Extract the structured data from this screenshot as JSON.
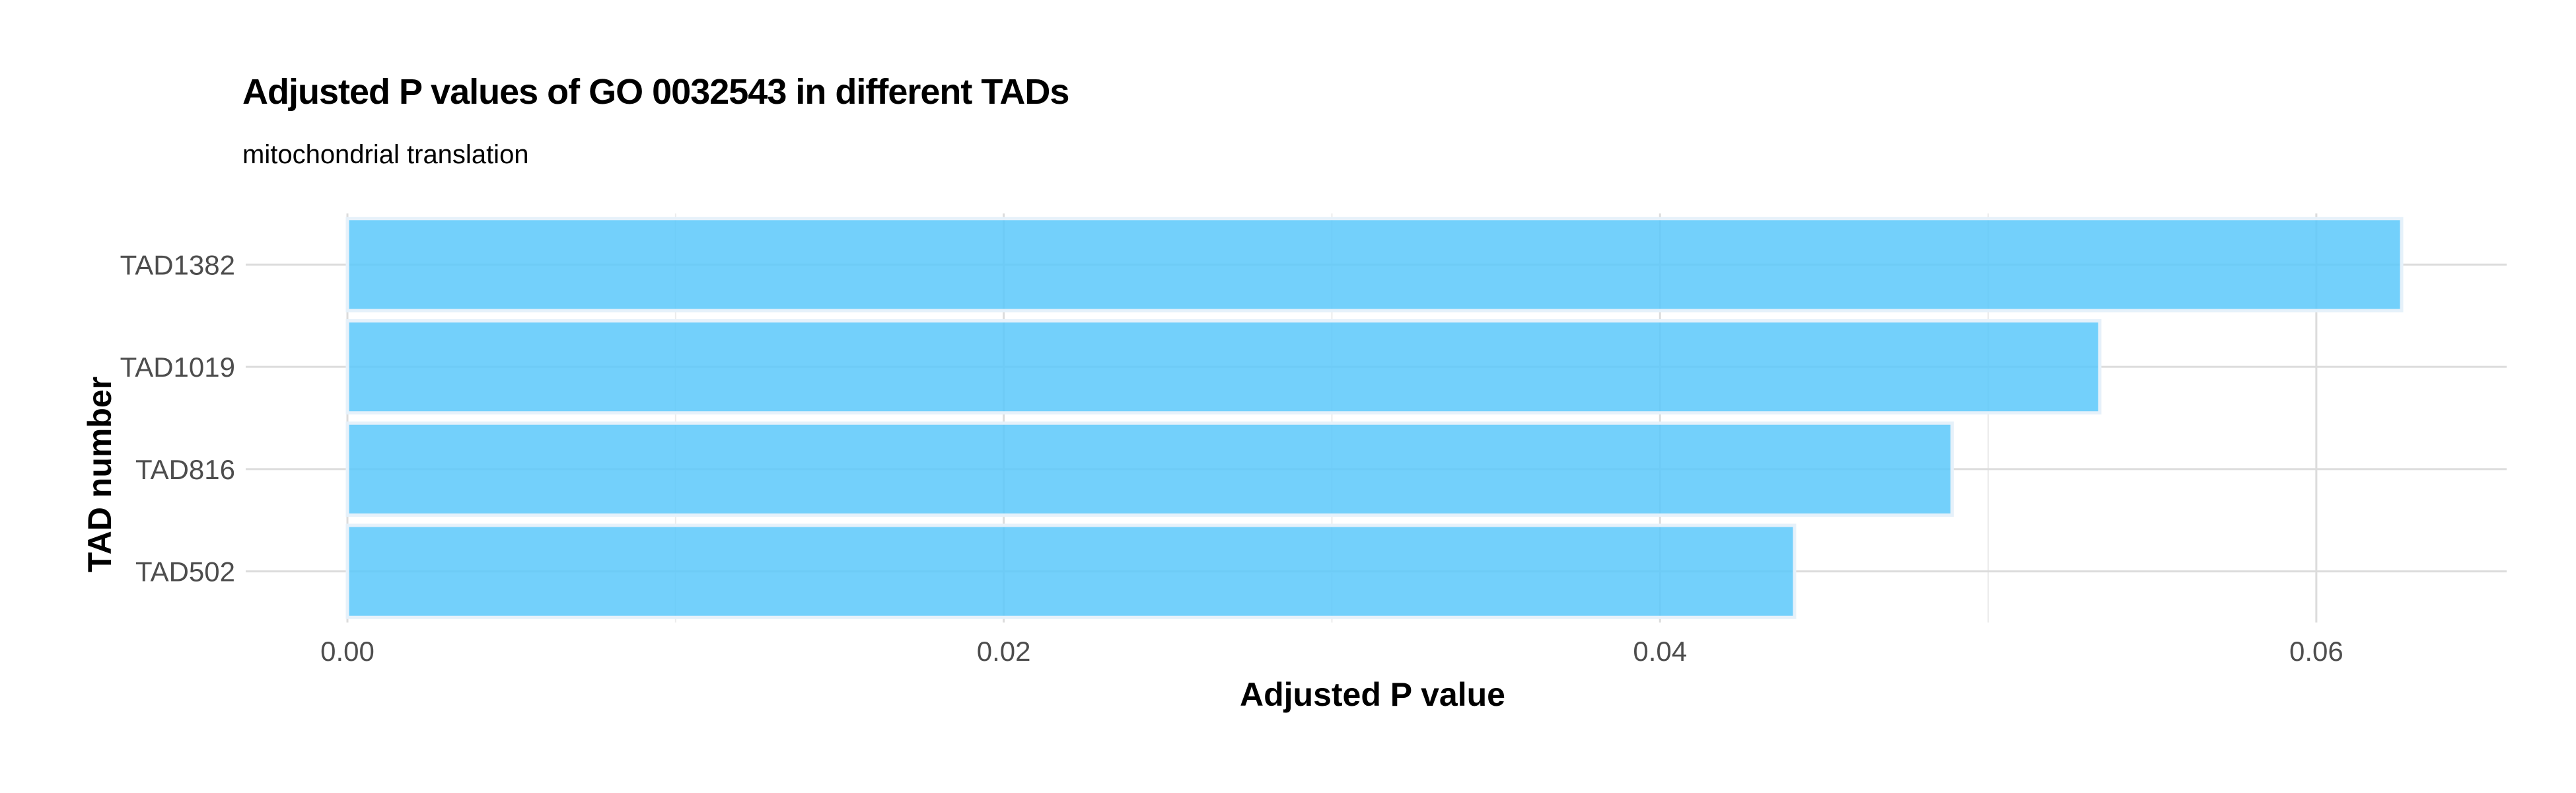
{
  "chart_data": {
    "type": "bar",
    "orientation": "horizontal",
    "title": "Adjusted P values of GO 0032543 in different TADs",
    "subtitle": "mitochondrial translation",
    "xlabel": "Adjusted P value",
    "ylabel": "TAD number",
    "categories": [
      "TAD1382",
      "TAD1019",
      "TAD816",
      "TAD502"
    ],
    "values": [
      0.0626,
      0.0534,
      0.0489,
      0.0441
    ],
    "xlim": [
      -0.0031,
      0.0658
    ],
    "x_ticks": [
      0.0,
      0.02,
      0.04,
      0.06
    ],
    "x_tick_labels": [
      "0.00",
      "0.02",
      "0.04",
      "0.06"
    ],
    "grid": true,
    "bar_color": "#5BC8FA",
    "bar_outline_color": "#E6F1FA"
  }
}
